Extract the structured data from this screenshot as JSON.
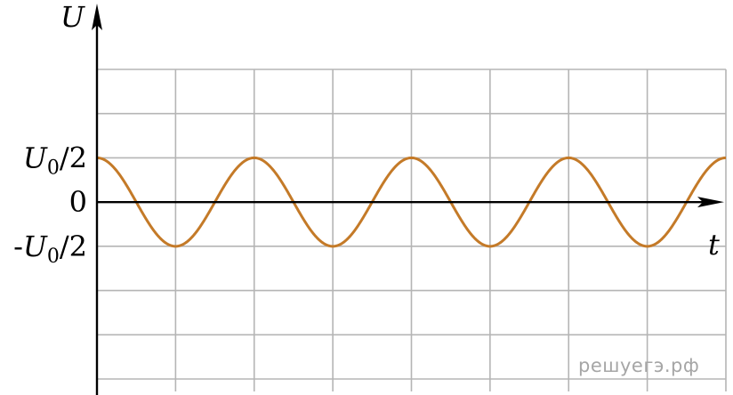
{
  "chart_data": {
    "type": "line",
    "title": "",
    "xlabel": "t",
    "ylabel": "U",
    "yticks": [
      {
        "value": 0.5,
        "symbol": "U",
        "sub": "0",
        "suffix": "/2",
        "prefix": ""
      },
      {
        "value": 0,
        "symbol": "",
        "sub": "",
        "suffix": "0",
        "prefix": ""
      },
      {
        "value": -0.5,
        "symbol": "U",
        "sub": "0",
        "suffix": "/2",
        "prefix": "-"
      }
    ],
    "series": [
      {
        "function": "y = 0.5 * cos(2π t / 2)",
        "amplitude": 0.5,
        "period": 2,
        "phase": 0,
        "xrange": [
          0,
          8
        ],
        "color": "#c47a28"
      }
    ],
    "xlim": [
      0,
      8
    ],
    "ylim": [
      -2,
      1.5
    ],
    "grid": true
  },
  "watermark": "решуегэ.рф"
}
